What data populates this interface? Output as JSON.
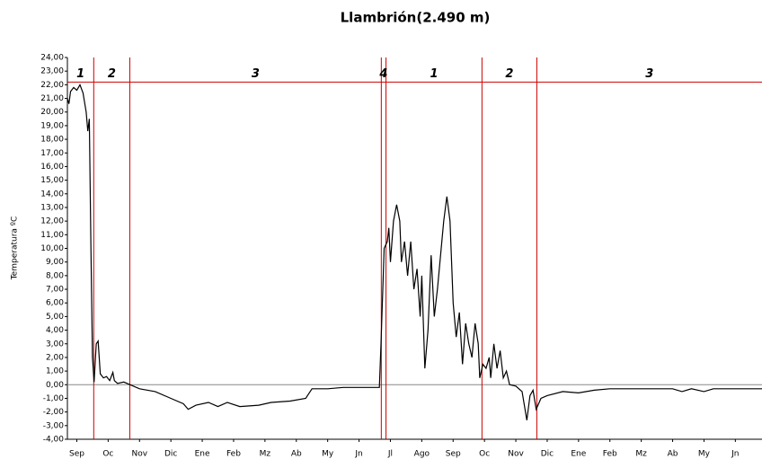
{
  "chart_data": {
    "type": "line",
    "title": "Llambrión(2.490 m)",
    "y_label": "Temperatura ºC",
    "xlim": [
      -0.3,
      21.85
    ],
    "ylim": [
      -4,
      24
    ],
    "xticks": [
      {
        "value": 0,
        "label": "Sep"
      },
      {
        "value": 1,
        "label": "Oc"
      },
      {
        "value": 2,
        "label": "Nov"
      },
      {
        "value": 3,
        "label": "Dic"
      },
      {
        "value": 4,
        "label": "Ene"
      },
      {
        "value": 5,
        "label": "Feb"
      },
      {
        "value": 6,
        "label": "Mz"
      },
      {
        "value": 7,
        "label": "Ab"
      },
      {
        "value": 8,
        "label": "My"
      },
      {
        "value": 9,
        "label": "Jn"
      },
      {
        "value": 10,
        "label": "Jl"
      },
      {
        "value": 11,
        "label": "Ago"
      },
      {
        "value": 12,
        "label": "Sep"
      },
      {
        "value": 13,
        "label": "Oc"
      },
      {
        "value": 14,
        "label": "Nov"
      },
      {
        "value": 15,
        "label": "Dic"
      },
      {
        "value": 16,
        "label": "Ene"
      },
      {
        "value": 17,
        "label": "Feb"
      },
      {
        "value": 18,
        "label": "Mz"
      },
      {
        "value": 19,
        "label": "Ab"
      },
      {
        "value": 20,
        "label": "My"
      },
      {
        "value": 21,
        "label": "Jn"
      }
    ],
    "yticks": [
      {
        "value": -4,
        "label": "-4,00"
      },
      {
        "value": -3,
        "label": "-3,00"
      },
      {
        "value": -2,
        "label": "-2,00"
      },
      {
        "value": -1,
        "label": "-1,00"
      },
      {
        "value": 0,
        "label": "0,00"
      },
      {
        "value": 1,
        "label": "1,00"
      },
      {
        "value": 2,
        "label": "2,00"
      },
      {
        "value": 3,
        "label": "3,00"
      },
      {
        "value": 4,
        "label": "4,00"
      },
      {
        "value": 5,
        "label": "5,00"
      },
      {
        "value": 6,
        "label": "6,00"
      },
      {
        "value": 7,
        "label": "7,00"
      },
      {
        "value": 8,
        "label": "8,00"
      },
      {
        "value": 9,
        "label": "9,00"
      },
      {
        "value": 10,
        "label": "10,00"
      },
      {
        "value": 11,
        "label": "11,00"
      },
      {
        "value": 12,
        "label": "12,00"
      },
      {
        "value": 13,
        "label": "13,00"
      },
      {
        "value": 14,
        "label": "14,00"
      },
      {
        "value": 15,
        "label": "15,00"
      },
      {
        "value": 16,
        "label": "16,00"
      },
      {
        "value": 17,
        "label": "17,00"
      },
      {
        "value": 18,
        "label": "18,00"
      },
      {
        "value": 19,
        "label": "19,00"
      },
      {
        "value": 20,
        "label": "20,00"
      },
      {
        "value": 21,
        "label": "21,00"
      },
      {
        "value": 22,
        "label": "22,00"
      },
      {
        "value": 23,
        "label": "23,00"
      },
      {
        "value": 24,
        "label": "24,00"
      }
    ],
    "phase_lines": [
      0.54,
      1.69,
      9.71,
      9.86,
      12.92,
      14.67
    ],
    "phase_top": 22.2,
    "phase_labels": [
      "1",
      "2",
      "3",
      "4",
      "1",
      "2",
      "3"
    ],
    "color": "#000000",
    "phase_color": "#cc0000",
    "x": [
      -0.3,
      -0.25,
      -0.2,
      -0.1,
      0,
      0.1,
      0.2,
      0.3,
      0.35,
      0.4,
      0.45,
      0.5,
      0.55,
      0.62,
      0.68,
      0.75,
      0.85,
      0.95,
      1.05,
      1.15,
      1.2,
      1.3,
      1.5,
      1.7,
      2,
      2.5,
      3,
      3.4,
      3.55,
      3.8,
      4.2,
      4.5,
      4.8,
      5.2,
      5.8,
      6.2,
      6.8,
      7.3,
      7.5,
      8,
      8.5,
      9,
      9.65,
      9.7,
      9.8,
      9.9,
      9.95,
      10,
      10.1,
      10.2,
      10.3,
      10.35,
      10.45,
      10.55,
      10.65,
      10.75,
      10.85,
      10.95,
      11,
      11.1,
      11.2,
      11.3,
      11.4,
      11.5,
      11.6,
      11.7,
      11.8,
      11.9,
      12,
      12.1,
      12.2,
      12.3,
      12.4,
      12.5,
      12.6,
      12.7,
      12.8,
      12.85,
      12.95,
      13.05,
      13.15,
      13.2,
      13.3,
      13.4,
      13.5,
      13.6,
      13.7,
      13.8,
      14,
      14.2,
      14.35,
      14.45,
      14.55,
      14.65,
      14.8,
      15,
      15.5,
      16,
      16.5,
      17,
      18,
      19,
      19.3,
      19.6,
      20,
      20.3,
      21,
      21.85
    ],
    "values": [
      21,
      20.6,
      21.5,
      21.8,
      21.6,
      22,
      21.4,
      20,
      18.6,
      19.5,
      10,
      2,
      0.2,
      3,
      3.2,
      0.8,
      0.5,
      0.6,
      0.3,
      0.9,
      0.3,
      0.1,
      0.2,
      0,
      -0.3,
      -0.5,
      -1,
      -1.4,
      -1.8,
      -1.5,
      -1.3,
      -1.6,
      -1.3,
      -1.6,
      -1.5,
      -1.3,
      -1.2,
      -1,
      -0.3,
      -0.3,
      -0.2,
      -0.2,
      -0.2,
      3,
      10,
      10.5,
      11.5,
      9,
      12,
      13.2,
      12,
      9,
      10.5,
      8,
      10.5,
      7,
      8.5,
      5,
      8,
      1.2,
      4,
      9.5,
      5,
      7,
      9.5,
      12,
      13.8,
      12,
      6,
      3.5,
      5.3,
      1.5,
      4.5,
      3,
      2,
      4.5,
      3,
      0.5,
      1.5,
      1.2,
      2,
      0.5,
      3,
      1.2,
      2.5,
      0.5,
      1,
      0,
      -0.1,
      -0.5,
      -2.6,
      -0.8,
      -0.4,
      -1.8,
      -1,
      -0.8,
      -0.5,
      -0.6,
      -0.4,
      -0.3,
      -0.3,
      -0.3,
      -0.5,
      -0.3,
      -0.5,
      -0.3,
      -0.3,
      -0.3
    ]
  }
}
